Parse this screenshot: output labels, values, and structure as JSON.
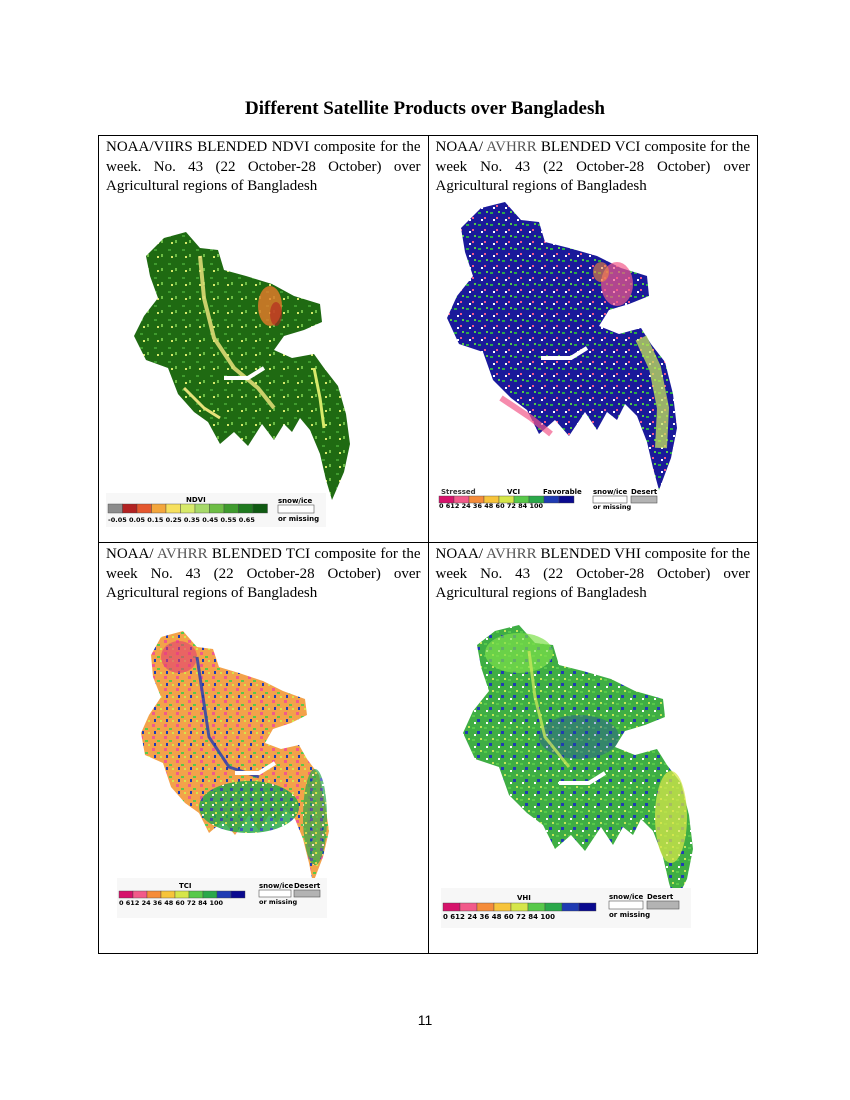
{
  "title": "Different Satellite Products over Bangladesh",
  "page_number": "11",
  "panels": [
    {
      "caption_parts": [
        "NOAA/VIIRS BLENDED NDVI composite for the week. No. 43 (22 October-28 October) over Agricultural regions of Bangladesh"
      ],
      "legend": {
        "label": "NDVI",
        "ticks": "-0.05 0.05 0.15 0.25 0.35 0.45 0.55 0.65",
        "side_label_1": "snow/ice",
        "side_label_2": "or missing",
        "colors": [
          "#8c8c8c",
          "#b22222",
          "#e4572e",
          "#f3a63c",
          "#f6e05e",
          "#d7ea6a",
          "#a6d96a",
          "#6dbd45",
          "#3f9b2e",
          "#1f7a1f",
          "#0f5a12"
        ]
      }
    },
    {
      "caption_parts": [
        "NOAA/ ",
        "AVHRR",
        " BLENDED VCI composite for the week No. 43 (22 October-28 October) over Agricultural regions of Bangladesh"
      ],
      "legend": {
        "left_label": "Stressed",
        "label": "VCI",
        "right_label": "Favorable",
        "side_label_1": "snow/ice",
        "side_label_2": "or missing",
        "desert_label": "Desert",
        "ticks": "0 612 24 36 48 60 72 84 100",
        "colors": [
          "#d6136b",
          "#f25a8a",
          "#f58c3a",
          "#f7c43b",
          "#d6e64a",
          "#58c94a",
          "#2aa84a",
          "#1f3bb3",
          "#0a0a8f"
        ]
      }
    },
    {
      "caption_parts": [
        "NOAA/ ",
        "AVHRR",
        " BLENDED TCI composite for the week No. 43 (22 October-28 October) over Agricultural regions of Bangladesh"
      ],
      "legend": {
        "label": "TCI",
        "side_label_1": "snow/ice",
        "side_label_2": "or missing",
        "desert_label": "Desert",
        "ticks": "0 612 24 36 48 60 72 84 100",
        "colors": [
          "#d6136b",
          "#f25a8a",
          "#f58c3a",
          "#f7c43b",
          "#d6e64a",
          "#58c94a",
          "#2aa84a",
          "#1f3bb3",
          "#0a0a8f"
        ]
      }
    },
    {
      "caption_parts": [
        "NOAA/ ",
        "AVHRR",
        " BLENDED VHI composite for the week No. 43 (22 October-28 October) over Agricultural regions of Bangladesh"
      ],
      "legend": {
        "label": "VHI",
        "side_label_1": "snow/ice",
        "side_label_2": "or missing",
        "desert_label": "Desert",
        "ticks": "0 612 24 36 48 60 72 84 100",
        "colors": [
          "#d6136b",
          "#f25a8a",
          "#f58c3a",
          "#f7c43b",
          "#d6e64a",
          "#58c94a",
          "#2aa84a",
          "#1f3bb3",
          "#0a0a8f"
        ]
      }
    }
  ]
}
